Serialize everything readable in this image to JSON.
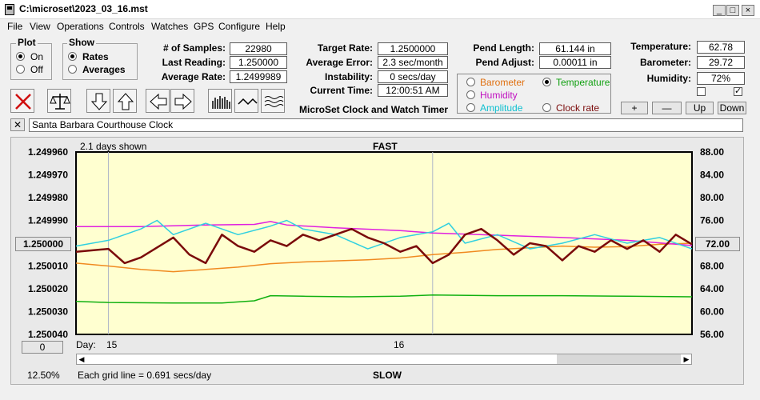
{
  "window": {
    "title": "C:\\microset\\2023_03_16.mst"
  },
  "menu": [
    "File",
    "View",
    "Operations",
    "Controls",
    "Watches",
    "GPS",
    "Configure",
    "Help"
  ],
  "plot_group": {
    "label": "Plot",
    "options": [
      "On",
      "Off"
    ],
    "selected": "On"
  },
  "show_group": {
    "label": "Show",
    "options": [
      "Rates",
      "Averages"
    ],
    "selected": "Rates"
  },
  "stats_left": [
    {
      "label": "# of Samples:",
      "value": "22980"
    },
    {
      "label": "Last Reading:",
      "value": "1.250000"
    },
    {
      "label": "Average Rate:",
      "value": "1.2499989"
    }
  ],
  "stats_mid": [
    {
      "label": "Target Rate:",
      "value": "1.2500000"
    },
    {
      "label": "Average Error:",
      "value": "2.3 sec/month"
    },
    {
      "label": "Instability:",
      "value": "0 secs/day"
    },
    {
      "label": "Current Time:",
      "value": "12:00:51 AM"
    }
  ],
  "app_title_label": "MicroSet Clock and Watch Timer",
  "pendulum": [
    {
      "label": "Pend Length:",
      "value": "61.144 in"
    },
    {
      "label": "Pend Adjust:",
      "value": "0.00011 in"
    }
  ],
  "sensor_select": {
    "options": [
      {
        "label": "Barometer",
        "color": "#e07010",
        "selected": false
      },
      {
        "label": "Temperature",
        "color": "#10a010",
        "selected": true
      },
      {
        "label": "Humidity",
        "color": "#c010c0",
        "selected": false
      },
      {
        "label": "Amplitude",
        "color": "#10c0d0",
        "selected": false
      },
      {
        "label": "Clock rate",
        "color": "#7a0a0a",
        "selected": false
      }
    ]
  },
  "environment": [
    {
      "label": "Temperature:",
      "value": "62.78"
    },
    {
      "label": "Barometer:",
      "value": "29.72"
    },
    {
      "label": "Humidity:",
      "value": "72%"
    }
  ],
  "env_checkboxes": [
    false,
    true
  ],
  "env_buttons": [
    "+",
    "—",
    "Up",
    "Down"
  ],
  "toolbar_icons": [
    "close-x-icon",
    "balance-scale-icon",
    "arrow-down-icon",
    "arrow-up-icon",
    "arrow-left-icon",
    "arrow-right-icon",
    "histogram-icon",
    "wave-icon",
    "multi-wave-icon"
  ],
  "clock_name": {
    "close_label": "✕",
    "value": "Santa Barbara Courthouse Clock"
  },
  "chart": {
    "days_shown": "2.1 days shown",
    "fast_label": "FAST",
    "slow_label": "SLOW",
    "center_button": "1.250000",
    "right_center_button": "72.00",
    "zero_button": "0",
    "percent": "12.50%",
    "grid_note": "Each grid line = 0.691 secs/day",
    "day_label": "Day:",
    "day_ticks": [
      "15",
      "16"
    ]
  },
  "chart_data": {
    "type": "line",
    "y_left_ticks": [
      "1.249960",
      "1.249970",
      "1.249980",
      "1.249990",
      "1.250000",
      "1.250010",
      "1.250020",
      "1.250030",
      "1.250040"
    ],
    "y_right_ticks": [
      "88.00",
      "84.00",
      "80.00",
      "76.00",
      "72.00",
      "68.00",
      "64.00",
      "60.00",
      "56.00"
    ],
    "ylim_left": [
      1.24996,
      1.25004
    ],
    "ylim_right": [
      56,
      88
    ],
    "x_range_days": [
      14.9,
      16.8
    ],
    "series": [
      {
        "name": "Temperature",
        "color": "#10b010",
        "points": [
          [
            14.9,
            61.8
          ],
          [
            15.0,
            61.6
          ],
          [
            15.2,
            61.5
          ],
          [
            15.35,
            61.5
          ],
          [
            15.45,
            61.9
          ],
          [
            15.5,
            62.8
          ],
          [
            15.6,
            62.7
          ],
          [
            15.75,
            62.6
          ],
          [
            15.9,
            62.7
          ],
          [
            16.0,
            62.9
          ],
          [
            16.2,
            62.8
          ],
          [
            16.4,
            62.8
          ],
          [
            16.6,
            62.7
          ],
          [
            16.8,
            62.6
          ]
        ]
      },
      {
        "name": "Barometer",
        "color": "#f08a20",
        "points": [
          [
            14.9,
            68.5
          ],
          [
            15.0,
            68.0
          ],
          [
            15.1,
            67.4
          ],
          [
            15.2,
            67.0
          ],
          [
            15.3,
            67.4
          ],
          [
            15.4,
            67.8
          ],
          [
            15.5,
            68.4
          ],
          [
            15.6,
            68.7
          ],
          [
            15.7,
            68.9
          ],
          [
            15.8,
            69.1
          ],
          [
            15.9,
            69.4
          ],
          [
            16.0,
            70.0
          ],
          [
            16.1,
            70.4
          ],
          [
            16.2,
            70.9
          ],
          [
            16.3,
            71.2
          ],
          [
            16.4,
            71.5
          ],
          [
            16.5,
            71.3
          ],
          [
            16.6,
            71.4
          ],
          [
            16.7,
            71.8
          ],
          [
            16.8,
            72.0
          ]
        ]
      },
      {
        "name": "Humidity",
        "color": "#e020e0",
        "points": [
          [
            14.9,
            74.9
          ],
          [
            15.1,
            74.9
          ],
          [
            15.3,
            75.2
          ],
          [
            15.45,
            75.3
          ],
          [
            15.5,
            75.8
          ],
          [
            15.55,
            75.2
          ],
          [
            15.7,
            74.7
          ],
          [
            15.9,
            74.2
          ],
          [
            16.0,
            73.8
          ],
          [
            16.2,
            73.4
          ],
          [
            16.4,
            73.0
          ],
          [
            16.6,
            72.5
          ],
          [
            16.8,
            71.6
          ]
        ]
      },
      {
        "name": "Amplitude",
        "color": "#30d0e0",
        "points": [
          [
            14.9,
            71.5
          ],
          [
            15.0,
            72.5
          ],
          [
            15.1,
            74.5
          ],
          [
            15.15,
            76.0
          ],
          [
            15.2,
            73.5
          ],
          [
            15.3,
            75.5
          ],
          [
            15.4,
            73.5
          ],
          [
            15.5,
            75.0
          ],
          [
            15.55,
            76.0
          ],
          [
            15.6,
            74.5
          ],
          [
            15.7,
            73.5
          ],
          [
            15.8,
            71.0
          ],
          [
            15.9,
            73.0
          ],
          [
            16.0,
            74.0
          ],
          [
            16.05,
            75.5
          ],
          [
            16.1,
            72.0
          ],
          [
            16.2,
            73.5
          ],
          [
            16.3,
            71.0
          ],
          [
            16.4,
            72.0
          ],
          [
            16.5,
            73.5
          ],
          [
            16.6,
            72.0
          ],
          [
            16.7,
            73.0
          ],
          [
            16.8,
            71.0
          ]
        ]
      },
      {
        "name": "Clock rate",
        "color": "#7a0a0a",
        "points": [
          [
            14.9,
            70.5
          ],
          [
            15.0,
            71.0
          ],
          [
            15.05,
            68.5
          ],
          [
            15.1,
            69.5
          ],
          [
            15.2,
            73.0
          ],
          [
            15.25,
            70.0
          ],
          [
            15.3,
            68.5
          ],
          [
            15.35,
            73.5
          ],
          [
            15.4,
            71.5
          ],
          [
            15.45,
            70.5
          ],
          [
            15.5,
            72.5
          ],
          [
            15.55,
            71.5
          ],
          [
            15.6,
            73.5
          ],
          [
            15.65,
            72.5
          ],
          [
            15.7,
            73.5
          ],
          [
            15.75,
            74.5
          ],
          [
            15.8,
            73.0
          ],
          [
            15.85,
            72.0
          ],
          [
            15.9,
            70.5
          ],
          [
            15.95,
            71.5
          ],
          [
            16.0,
            68.5
          ],
          [
            16.05,
            70.0
          ],
          [
            16.1,
            73.5
          ],
          [
            16.15,
            74.5
          ],
          [
            16.2,
            72.5
          ],
          [
            16.25,
            70.0
          ],
          [
            16.3,
            72.0
          ],
          [
            16.35,
            71.5
          ],
          [
            16.4,
            69.0
          ],
          [
            16.45,
            71.5
          ],
          [
            16.5,
            70.5
          ],
          [
            16.55,
            72.5
          ],
          [
            16.6,
            71.0
          ],
          [
            16.65,
            72.5
          ],
          [
            16.7,
            70.5
          ],
          [
            16.75,
            73.5
          ],
          [
            16.8,
            71.8
          ]
        ]
      }
    ]
  }
}
